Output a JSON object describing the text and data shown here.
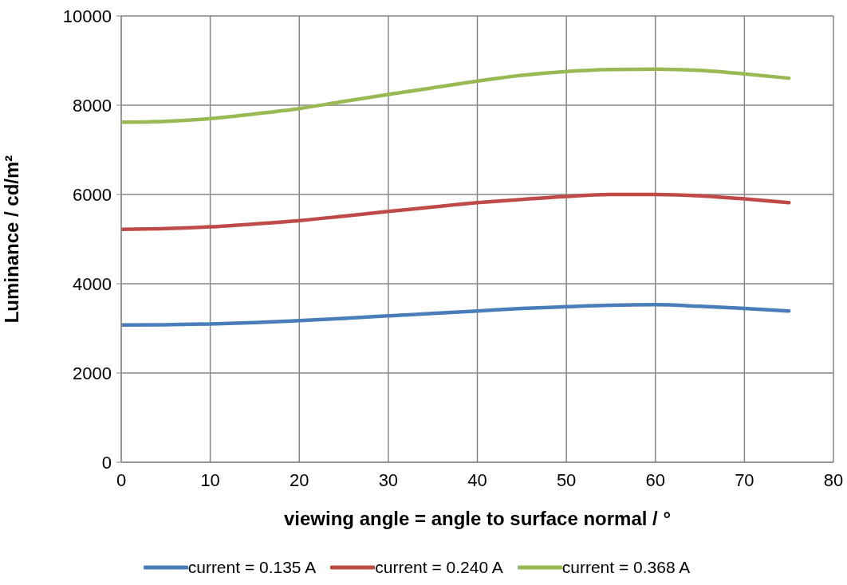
{
  "chart_data": {
    "type": "line",
    "xlabel": "viewing angle = angle to surface normal / °",
    "ylabel": "Luminance / cd/m²",
    "x": [
      0,
      5,
      10,
      15,
      20,
      25,
      30,
      35,
      40,
      45,
      50,
      55,
      60,
      65,
      70,
      75
    ],
    "series": [
      {
        "name": "current = 0.135 A",
        "color": "#4a7ebb",
        "values": [
          3075,
          3080,
          3100,
          3130,
          3175,
          3225,
          3280,
          3335,
          3390,
          3445,
          3485,
          3520,
          3530,
          3495,
          3445,
          3390
        ]
      },
      {
        "name": "current = 0.240 A",
        "color": "#be4b48",
        "values": [
          5220,
          5235,
          5275,
          5340,
          5415,
          5515,
          5620,
          5720,
          5815,
          5890,
          5955,
          6000,
          6000,
          5970,
          5900,
          5815
        ]
      },
      {
        "name": "current = 0.368 A",
        "color": "#98b954",
        "values": [
          7620,
          7640,
          7700,
          7805,
          7925,
          8085,
          8240,
          8390,
          8540,
          8670,
          8755,
          8800,
          8810,
          8780,
          8700,
          8605
        ]
      }
    ],
    "xlim": [
      0,
      80
    ],
    "xticks": [
      0,
      10,
      20,
      30,
      40,
      50,
      60,
      70,
      80
    ],
    "ylim": [
      0,
      10000
    ],
    "yticks": [
      0,
      2000,
      4000,
      6000,
      8000,
      10000
    ],
    "grid": true,
    "legend": "bottom",
    "marker": "none",
    "line_style": "solid"
  }
}
